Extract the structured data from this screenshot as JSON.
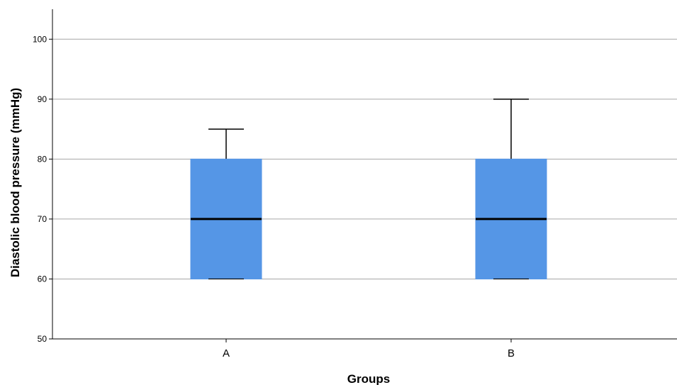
{
  "chart_data": {
    "type": "boxplot",
    "title": "",
    "xlabel": "Groups",
    "ylabel": "Diastolic blood pressure (mmHg)",
    "ylim": [
      50,
      105
    ],
    "yticks": [
      50,
      60,
      70,
      80,
      90,
      100
    ],
    "grid": true,
    "categories": [
      "A",
      "B"
    ],
    "boxes": [
      {
        "category": "A",
        "whisker_low": 60,
        "q1": 60,
        "median": 70,
        "q3": 80,
        "whisker_high": 85
      },
      {
        "category": "B",
        "whisker_low": 60,
        "q1": 60,
        "median": 70,
        "q3": 80,
        "whisker_high": 90
      }
    ],
    "box_color": "#5596E6"
  }
}
